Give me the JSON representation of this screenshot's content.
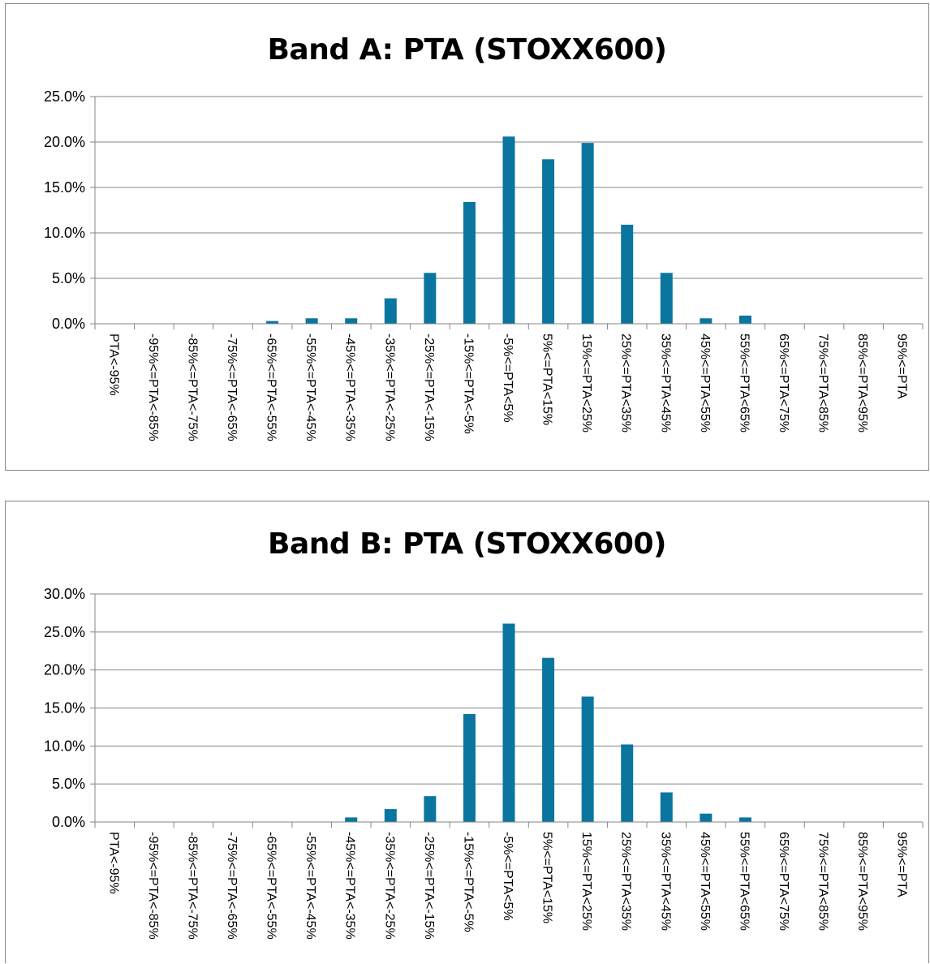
{
  "chart_data": [
    {
      "type": "bar",
      "title": "Band A: PTA  (STOXX600)",
      "xlabel": "",
      "ylabel": "",
      "ylim": [
        0,
        25
      ],
      "yticks": [
        "0.0%",
        "5.0%",
        "10.0%",
        "15.0%",
        "20.0%",
        "25.0%"
      ],
      "ytick_values": [
        0,
        5,
        10,
        15,
        20,
        25
      ],
      "grid": true,
      "bar_color": "#0A76A0",
      "categories": [
        "PTA<-95%",
        "-95%<=PTA<-85%",
        "-85%<=PTA<-75%",
        "-75%<=PTA<-65%",
        "-65%<=PTA<-55%",
        "-55%<=PTA<-45%",
        "-45%<=PTA<-35%",
        "-35%<=PTA<-25%",
        "-25%<=PTA<-15%",
        "-15%<=PTA<-5%",
        "-5%<=PTA<5%",
        "5%<=PTA<15%",
        "15%<=PTA<25%",
        "25%<=PTA<35%",
        "35%<=PTA<45%",
        "45%<=PTA<55%",
        "55%<=PTA<65%",
        "65%<=PTA<75%",
        "75%<=PTA<85%",
        "85%<=PTA<95%",
        "95%<=PTA"
      ],
      "values": [
        0,
        0,
        0,
        0,
        0.3,
        0.6,
        0.6,
        2.8,
        5.6,
        13.4,
        20.6,
        18.1,
        19.9,
        10.9,
        5.6,
        0.6,
        0.9,
        0,
        0,
        0,
        0
      ]
    },
    {
      "type": "bar",
      "title": "Band B: PTA  (STOXX600)",
      "xlabel": "",
      "ylabel": "",
      "ylim": [
        0,
        30
      ],
      "yticks": [
        "0.0%",
        "5.0%",
        "10.0%",
        "15.0%",
        "20.0%",
        "25.0%",
        "30.0%"
      ],
      "ytick_values": [
        0,
        5,
        10,
        15,
        20,
        25,
        30
      ],
      "grid": true,
      "bar_color": "#0A76A0",
      "categories": [
        "PTA<-95%",
        "-95%<=PTA<-85%",
        "-85%<=PTA<-75%",
        "-75%<=PTA<-65%",
        "-65%<=PTA<-55%",
        "-55%<=PTA<-45%",
        "-45%<=PTA<-35%",
        "-35%<=PTA<-25%",
        "-25%<=PTA<-15%",
        "-15%<=PTA<-5%",
        "-5%<=PTA<5%",
        "5%<=PTA<15%",
        "15%<=PTA<25%",
        "25%<=PTA<35%",
        "35%<=PTA<45%",
        "45%<=PTA<55%",
        "55%<=PTA<65%",
        "65%<=PTA<75%",
        "75%<=PTA<85%",
        "85%<=PTA<95%",
        "95%<=PTA"
      ],
      "values": [
        0,
        0,
        0,
        0,
        0,
        0,
        0.6,
        1.7,
        3.4,
        14.2,
        26.1,
        21.6,
        16.5,
        10.2,
        3.9,
        1.1,
        0.6,
        0,
        0,
        0,
        0
      ]
    }
  ]
}
